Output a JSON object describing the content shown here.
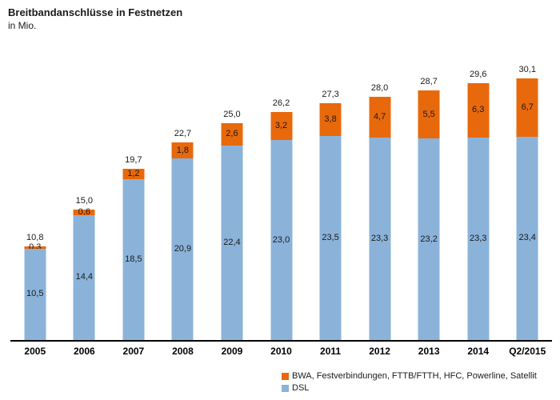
{
  "header": {
    "title": "Breitbandanschlüsse in Festnetzen",
    "subtitle": "in Mio."
  },
  "chart_data": {
    "type": "bar",
    "stacked": true,
    "title": "Breitbandanschlüsse in Festnetzen",
    "subtitle": "in Mio.",
    "categories": [
      "2005",
      "2006",
      "2007",
      "2008",
      "2009",
      "2010",
      "2011",
      "2012",
      "2013",
      "2014",
      "Q2/2015"
    ],
    "series": [
      {
        "name": "BWA, Festverbindungen, FTTB/FTTH, HFC, Powerline, Satellit",
        "color": "#E8690B",
        "values": [
          0.3,
          0.6,
          1.2,
          1.8,
          2.6,
          3.2,
          3.8,
          4.7,
          5.5,
          6.3,
          6.7
        ],
        "value_labels": [
          "0,3",
          "0,6",
          "1,2",
          "1,8",
          "2,6",
          "3,2",
          "3,8",
          "4,7",
          "5,5",
          "6,3",
          "6,7"
        ]
      },
      {
        "name": "DSL",
        "color": "#8BB3DA",
        "values": [
          10.5,
          14.4,
          18.5,
          20.9,
          22.4,
          23.0,
          23.5,
          23.3,
          23.2,
          23.3,
          23.4
        ],
        "value_labels": [
          "10,5",
          "14,4",
          "18,5",
          "20,9",
          "22,4",
          "23,0",
          "23,5",
          "23,3",
          "23,2",
          "23,3",
          "23,4"
        ]
      }
    ],
    "totals": [
      10.8,
      15.0,
      19.7,
      22.7,
      25.0,
      26.2,
      27.3,
      28.0,
      28.7,
      29.6,
      30.1
    ],
    "total_labels": [
      "10,8",
      "15,0",
      "19,7",
      "22,7",
      "25,0",
      "26,2",
      "27,3",
      "28,0",
      "28,7",
      "29,6",
      "30,1"
    ],
    "ylim": [
      0,
      32
    ],
    "grid": false,
    "axis_color": "#000000",
    "legend_position": "bottom-right"
  }
}
